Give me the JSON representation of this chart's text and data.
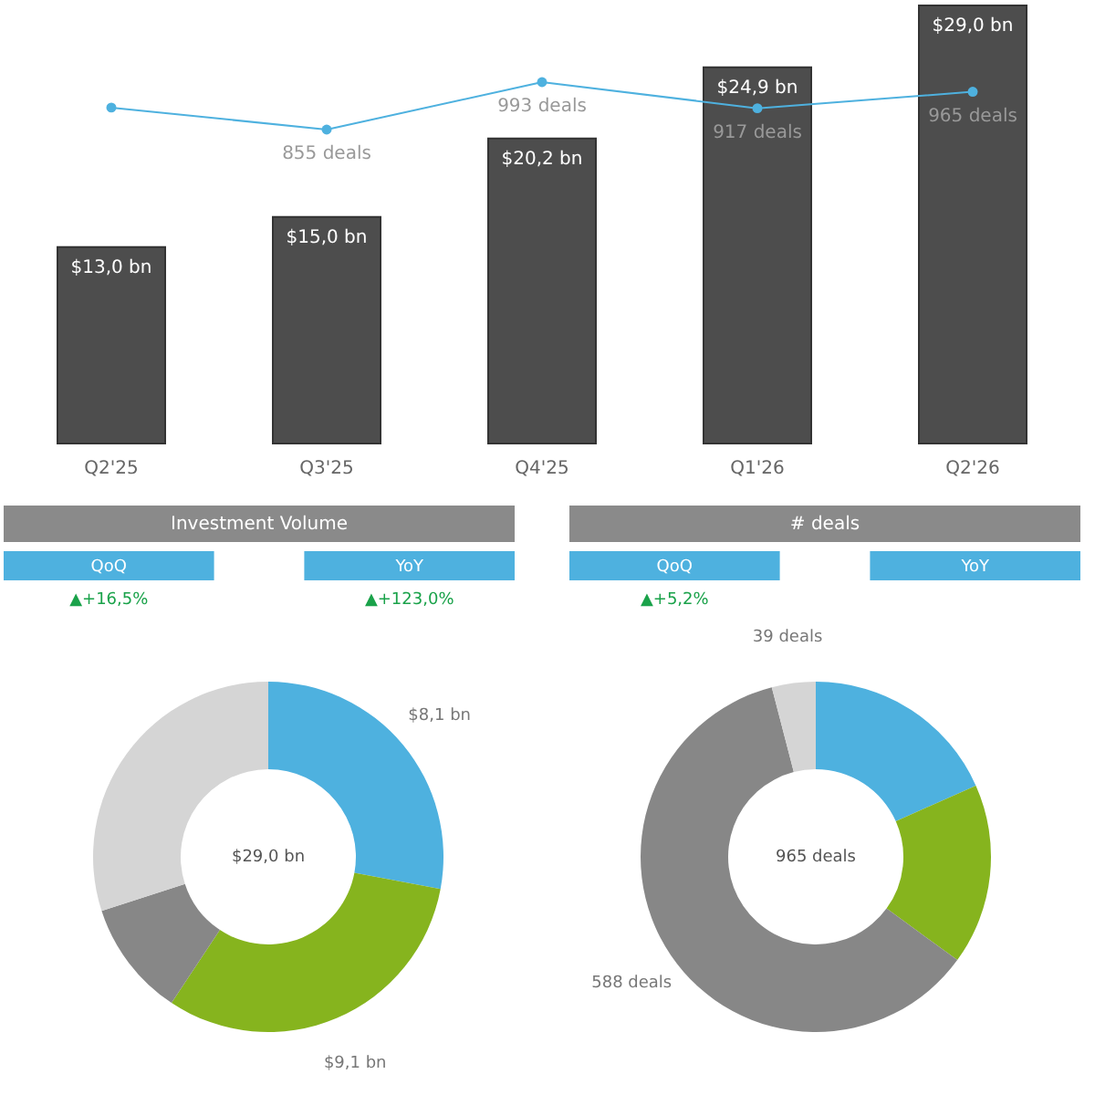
{
  "chart_data": [
    {
      "type": "bar",
      "categories": [
        "Q2'25",
        "Q3'25",
        "Q4'25",
        "Q1'26",
        "Q2'26"
      ],
      "series": [
        {
          "type": "bar",
          "color": "#4d4d4d",
          "values": [
            13.0,
            15.0,
            20.2,
            24.9,
            29.0
          ],
          "value_labels": [
            "$13,0 bn",
            "$15,0 bn",
            "$20,2 bn",
            "$24,9 bn",
            "$29,0 bn"
          ]
        },
        {
          "type": "line",
          "axis": "y2",
          "color": "#4eb1df",
          "marker": "circle",
          "values": [
            919,
            855,
            993,
            917,
            965
          ],
          "value_labels": [
            null,
            "855 deals",
            "993 deals",
            "917 deals",
            "965 deals"
          ]
        }
      ]
    },
    {
      "type": "other",
      "title": "Investment Volume",
      "categories": [
        "QoQ",
        "YoY"
      ],
      "colors": [
        "#4eb1df",
        "#4eb1df"
      ],
      "value_labels": [
        "▲+16,5%",
        "▲+123,0%"
      ]
    },
    {
      "type": "other",
      "title": "# deals",
      "categories": [
        "QoQ",
        "YoY"
      ],
      "colors": [
        "#4eb1df",
        "#4eb1df"
      ],
      "value_labels": [
        "▲+5,2%",
        null
      ]
    },
    {
      "type": "donut",
      "categories": [
        null,
        null,
        null,
        null
      ],
      "values": [
        8.1,
        9.1,
        3.1,
        8.7
      ],
      "colors": [
        "#4eb1df",
        "#86b41e",
        "#878787",
        "#d5d5d5"
      ],
      "value_labels": [
        "$8,1 bn",
        "$9,1 bn",
        null,
        null
      ],
      "annotations": [
        "$29,0 bn"
      ]
    },
    {
      "type": "donut",
      "categories": [
        null,
        null,
        null,
        null
      ],
      "values": [
        177,
        161,
        588,
        39
      ],
      "colors": [
        "#4eb1df",
        "#86b41e",
        "#878787",
        "#d5d5d5"
      ],
      "value_labels": [
        null,
        null,
        "588 deals",
        "39 deals"
      ],
      "annotations": [
        "965 deals"
      ]
    }
  ]
}
